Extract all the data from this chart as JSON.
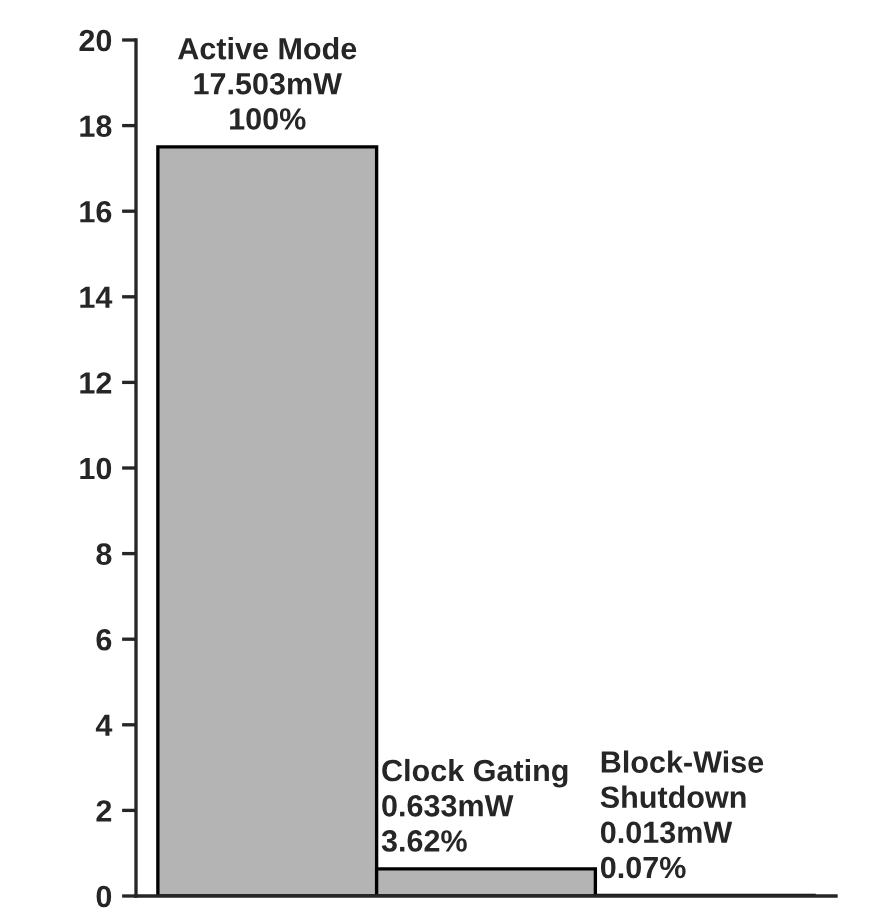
{
  "chart_data": {
    "type": "bar",
    "categories": [
      null,
      null,
      null
    ],
    "values": [
      17.503,
      0.633,
      0.013
    ],
    "color": "#b4b4b4",
    "value_labels": [
      "Active Mode\n17.503mW\n100%",
      "Clock Gating\n0.633mW\n3.62%",
      "Block-Wise\nShutdown\n0.013mW\n0.07%"
    ],
    "ylim": [
      0,
      20
    ],
    "yticks": [
      0,
      2,
      4,
      6,
      8,
      10,
      12,
      14,
      16,
      18,
      20
    ],
    "tick_labels": "y",
    "grid": false,
    "legend": false
  }
}
